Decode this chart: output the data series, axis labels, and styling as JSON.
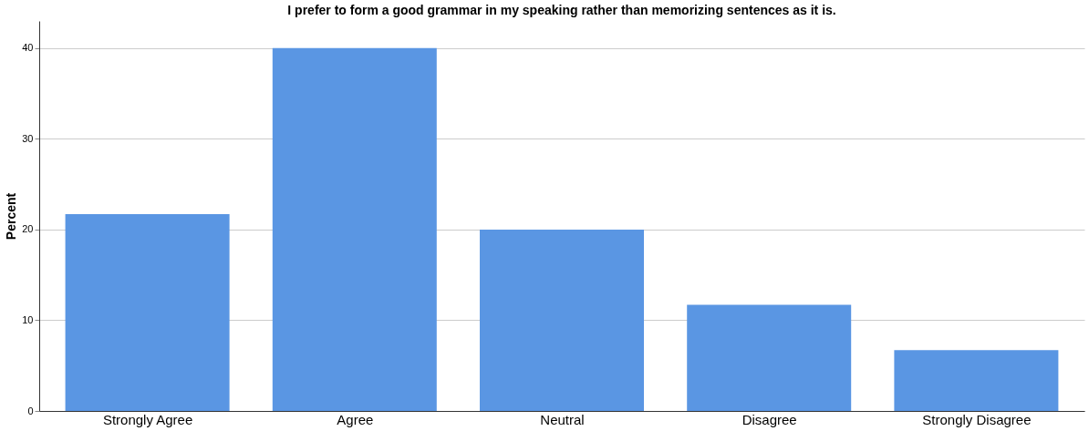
{
  "chart_data": {
    "type": "bar",
    "title": "I prefer to form a good grammar in my speaking rather than memorizing sentences as it is.",
    "ylabel": "Percent",
    "categories": [
      "Strongly Agree",
      "Agree",
      "Neutral",
      "Disagree",
      "Strongly Disagree"
    ],
    "values": [
      21.7,
      40,
      20,
      11.7,
      6.7
    ],
    "color": "#5a96e3",
    "ylim": [
      0,
      43
    ],
    "yticks": [
      0,
      10,
      20,
      30,
      40
    ],
    "grid": "y"
  }
}
